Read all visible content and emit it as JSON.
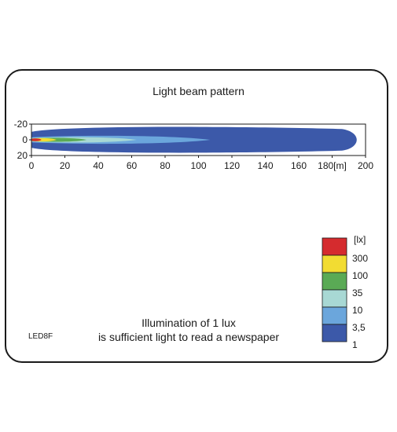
{
  "chart_data": {
    "type": "heatmap",
    "title": "Light beam pattern",
    "x_ticks": [
      "0",
      "20",
      "40",
      "60",
      "80",
      "100",
      "120",
      "140",
      "160",
      "180[m]",
      "200"
    ],
    "y_ticks": [
      "-20",
      "0",
      "20"
    ],
    "xlim": [
      0,
      200
    ],
    "ylim": [
      -20,
      20
    ],
    "grid": false,
    "legend_position": "bottom-right",
    "legend_unit": "[lx]",
    "levels": [
      {
        "label": "300",
        "lux": 300,
        "color": "#d52b2e",
        "reach_m": 6
      },
      {
        "label": "100",
        "lux": 100,
        "color": "#f2dc32",
        "reach_m": 15
      },
      {
        "label": "35",
        "lux": 35,
        "color": "#5aaa55",
        "reach_m": 33
      },
      {
        "label": "10",
        "lux": 10,
        "color": "#a8d8d4",
        "reach_m": 63
      },
      {
        "label": "3,5",
        "lux": 3.5,
        "color": "#6ba6dc",
        "reach_m": 107
      },
      {
        "label": "1",
        "lux": 1,
        "color": "#3c59a9",
        "reach_m": 200
      }
    ]
  },
  "caption": {
    "line1": "Illumination of 1 lux",
    "line2": "is sufficient light to read a newspaper"
  },
  "model": "LED8F"
}
